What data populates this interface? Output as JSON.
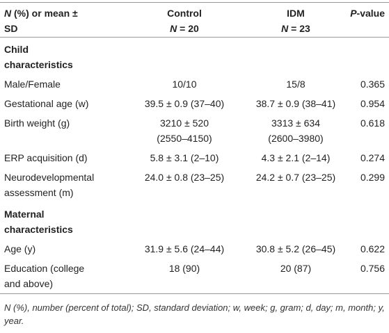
{
  "header": {
    "columns": [
      [
        [
          {
            "text": "N",
            "style": "italic"
          },
          {
            "text": " (%) or mean ±"
          }
        ],
        [
          {
            "text": "SD"
          }
        ]
      ],
      [
        [
          {
            "text": "Control"
          }
        ],
        [
          {
            "text": "N",
            "style": "italic"
          },
          {
            "text": " = 20"
          }
        ]
      ],
      [
        [
          {
            "text": "IDM"
          }
        ],
        [
          {
            "text": "N",
            "style": "italic"
          },
          {
            "text": " = 23"
          }
        ]
      ],
      [
        [
          {
            "text": "P",
            "style": "italic"
          },
          {
            "text": "-value"
          }
        ]
      ]
    ]
  },
  "sections": [
    {
      "title": [
        "Child",
        "characteristics"
      ],
      "rows": [
        [
          "Male/Female",
          "10/10",
          "15/8",
          "0.365"
        ],
        [
          "Gestational age (w)",
          "39.5 ± 0.9 (37–40)",
          "38.7 ± 0.9 (38–41)",
          "0.954"
        ],
        [
          "Birth weight (g)",
          [
            "3210 ± 520",
            "(2550–4150)"
          ],
          [
            "3313 ± 634",
            "(2600–3980)"
          ],
          "0.618"
        ],
        [
          "ERP acquisition (d)",
          "5.8 ± 3.1 (2–10)",
          "4.3 ± 2.1 (2–14)",
          "0.274"
        ],
        [
          [
            "Neurodevelopmental",
            "assessment (m)"
          ],
          "24.0 ± 0.8 (23–25)",
          "24.2 ± 0.7 (23–25)",
          "0.299"
        ]
      ]
    },
    {
      "title": [
        "Maternal",
        "characteristics"
      ],
      "rows": [
        [
          "Age (y)",
          "31.9 ± 5.6 (24–44)",
          "30.8 ± 5.2 (26–45)",
          "0.622"
        ],
        [
          [
            "Education (college",
            "and above)"
          ],
          "18 (90)",
          "20 (87)",
          "0.756"
        ]
      ]
    }
  ],
  "footnote": "N (%), number (percent of total); SD, standard deviation; w, week; g, gram; d, day; m, month; y, year."
}
